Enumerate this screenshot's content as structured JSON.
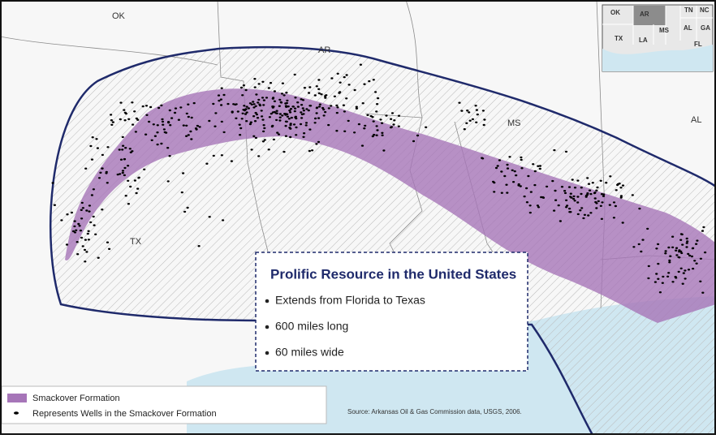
{
  "map": {
    "state_labels": [
      "OK",
      "AR",
      "MS",
      "AL",
      "TX"
    ],
    "inset_labels": [
      "OK",
      "AR",
      "TN",
      "NC",
      "TX",
      "LA",
      "MS",
      "AL",
      "GA",
      "FL"
    ],
    "callout": {
      "title": "Prolific Resource in the United States",
      "bullets": [
        "Extends from Florida to Texas",
        "600 miles long",
        "60 miles wide"
      ]
    },
    "legend": [
      "Smackover Formation",
      "Represents Wells in the Smackover Formation"
    ],
    "source": "Source: Arkansas Oil & Gas Commission data, USGS, 2006."
  }
}
